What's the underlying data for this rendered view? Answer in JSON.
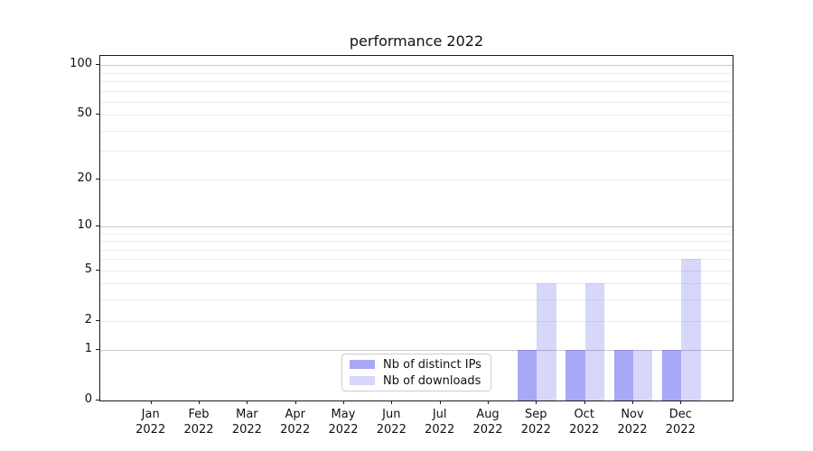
{
  "figure": {
    "background_color": "#ffffff",
    "text_color": "#111111"
  },
  "chart_data": {
    "type": "bar",
    "title": "performance 2022",
    "xlabel": "",
    "ylabel": "",
    "x_categories": [
      {
        "month": "Jan",
        "year": "2022"
      },
      {
        "month": "Feb",
        "year": "2022"
      },
      {
        "month": "Mar",
        "year": "2022"
      },
      {
        "month": "Apr",
        "year": "2022"
      },
      {
        "month": "May",
        "year": "2022"
      },
      {
        "month": "Jun",
        "year": "2022"
      },
      {
        "month": "Jul",
        "year": "2022"
      },
      {
        "month": "Aug",
        "year": "2022"
      },
      {
        "month": "Sep",
        "year": "2022"
      },
      {
        "month": "Oct",
        "year": "2022"
      },
      {
        "month": "Nov",
        "year": "2022"
      },
      {
        "month": "Dec",
        "year": "2022"
      }
    ],
    "series": [
      {
        "name": "Nb of distinct IPs",
        "color": "rgba(20,20,230,0.37)",
        "values": [
          0,
          0,
          0,
          0,
          0,
          0,
          0,
          0,
          1,
          1,
          1,
          1
        ]
      },
      {
        "name": "Nb of downloads",
        "color": "rgba(20,20,230,0.17)",
        "values": [
          0,
          0,
          0,
          0,
          0,
          0,
          0,
          0,
          4,
          4,
          1,
          6
        ]
      }
    ],
    "yscale": "log1p",
    "yticks": [
      0,
      1,
      2,
      5,
      10,
      20,
      50,
      100
    ],
    "ylim": [
      0,
      113
    ],
    "grid": {
      "orientation": "horizontal",
      "major_values": [
        1,
        10,
        100
      ],
      "minor_values": [
        2,
        3,
        4,
        5,
        6,
        7,
        8,
        9,
        20,
        30,
        40,
        50,
        60,
        70,
        80,
        90
      ],
      "major_color": "#c9c9c9",
      "minor_color": "#ececec"
    },
    "legend": {
      "position": "inside-lower-center",
      "items": [
        "Nb of distinct IPs",
        "Nb of downloads"
      ]
    }
  }
}
